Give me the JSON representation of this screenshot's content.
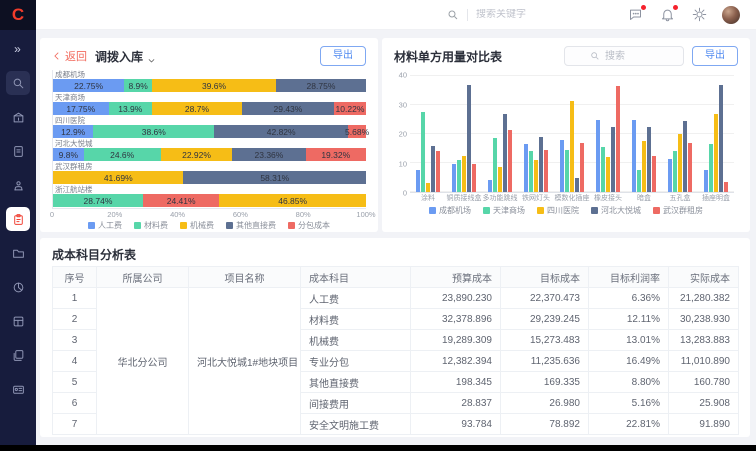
{
  "colors": {
    "blue": "#6B9BF2",
    "green": "#57D6A9",
    "yellow": "#F6BD16",
    "gray": "#5D7092",
    "red": "#EE6A63",
    "accent_red": "#F23C2B",
    "export_blue": "#4D88F0",
    "sidebar_bg": "#171C3D"
  },
  "topbar": {
    "search_placeholder": "搜索关键字",
    "icons": [
      "search-icon",
      "chat-icon",
      "bell-icon",
      "gear-icon",
      "avatar"
    ]
  },
  "sidebar": {
    "icons": [
      "expand-icon",
      "search-icon",
      "building-icon",
      "document-icon",
      "approval-icon",
      "inventory-icon",
      "folder-icon",
      "pie-chart-icon",
      "report-icon",
      "pages-icon",
      "id-card-icon"
    ],
    "active_icon": "inventory-icon"
  },
  "left_panel": {
    "back_label": "返回",
    "title": "调拨入库",
    "export_label": "导出"
  },
  "right_panel": {
    "title": "材料单方用量对比表",
    "search_placeholder": "搜索",
    "export_label": "导出"
  },
  "chart_data": [
    {
      "type": "bar",
      "orientation": "horizontal-stacked",
      "title": "调拨入库",
      "xlabel": "",
      "ylabel": "",
      "xlim": [
        0,
        100
      ],
      "xticks": [
        "0",
        "20%",
        "40%",
        "60%",
        "80%",
        "100%"
      ],
      "legend": [
        {
          "label": "人工费",
          "color": "blue"
        },
        {
          "label": "材料费",
          "color": "green"
        },
        {
          "label": "机械费",
          "color": "yellow"
        },
        {
          "label": "其他直接费",
          "color": "gray"
        },
        {
          "label": "分包成本",
          "color": "red"
        }
      ],
      "rows": [
        {
          "category": "成都机场",
          "segments": [
            {
              "series": "人工费",
              "value": 22.75,
              "label": "22.75%",
              "color": "blue"
            },
            {
              "series": "材料费",
              "value": 8.9,
              "label": "8.9%",
              "color": "green"
            },
            {
              "series": "机械费",
              "value": 39.6,
              "label": "39.6%",
              "color": "yellow"
            },
            {
              "series": "其他直接费",
              "value": 28.75,
              "label": "28.75%",
              "color": "gray"
            }
          ]
        },
        {
          "category": "天津商场",
          "segments": [
            {
              "series": "人工费",
              "value": 17.75,
              "label": "17.75%",
              "color": "blue"
            },
            {
              "series": "材料费",
              "value": 13.9,
              "label": "13.9%",
              "color": "green"
            },
            {
              "series": "机械费",
              "value": 28.7,
              "label": "28.7%",
              "color": "yellow"
            },
            {
              "series": "其他直接费",
              "value": 29.43,
              "label": "29.43%",
              "color": "gray"
            },
            {
              "series": "分包成本",
              "value": 10.22,
              "label": "10.22%",
              "color": "red"
            }
          ]
        },
        {
          "category": "四川医院",
          "segments": [
            {
              "series": "人工费",
              "value": 12.9,
              "label": "12.9%",
              "color": "blue"
            },
            {
              "series": "材料费",
              "value": 38.6,
              "label": "38.6%",
              "color": "green"
            },
            {
              "series": "其他直接费",
              "value": 42.82,
              "label": "42.82%",
              "color": "gray"
            },
            {
              "series": "分包成本",
              "value": 5.68,
              "label": "5.68%",
              "color": "red"
            }
          ]
        },
        {
          "category": "河北大悦城",
          "segments": [
            {
              "series": "人工费",
              "value": 9.8,
              "label": "9.8%",
              "color": "blue"
            },
            {
              "series": "材料费",
              "value": 24.6,
              "label": "24.6%",
              "color": "green"
            },
            {
              "series": "机械费",
              "value": 22.92,
              "label": "22.92%",
              "color": "yellow"
            },
            {
              "series": "其他直接费",
              "value": 23.36,
              "label": "23.36%",
              "color": "gray"
            },
            {
              "series": "分包成本",
              "value": 19.32,
              "label": "19.32%",
              "color": "red"
            }
          ]
        },
        {
          "category": "武汉群租房",
          "segments": [
            {
              "series": "机械费",
              "value": 41.69,
              "label": "41.69%",
              "color": "yellow"
            },
            {
              "series": "其他直接费",
              "value": 58.31,
              "label": "58.31%",
              "color": "gray"
            }
          ]
        },
        {
          "category": "浙江航站楼",
          "segments": [
            {
              "series": "材料费",
              "value": 28.74,
              "label": "28.74%",
              "color": "green"
            },
            {
              "series": "分包成本",
              "value": 24.41,
              "label": "24.41%",
              "color": "red"
            },
            {
              "series": "机械费",
              "value": 46.85,
              "label": "46.85%",
              "color": "yellow"
            }
          ]
        }
      ]
    },
    {
      "type": "bar",
      "orientation": "vertical-grouped",
      "title": "材料单方用量对比表",
      "xlabel": "",
      "ylabel": "",
      "ylim": [
        0,
        40
      ],
      "yticks": [
        "0",
        "10",
        "20",
        "30",
        "40"
      ],
      "categories": [
        "涂料",
        "铜质接线盒",
        "多功能跳线",
        "铁网灯头",
        "模数化插座",
        "橡皮接头",
        "暗盒",
        "五孔盒",
        "插座明盒"
      ],
      "series": [
        {
          "name": "成都机场",
          "color": "blue",
          "values": [
            7.5,
            9.5,
            4,
            16.5,
            18,
            25,
            25,
            11.5,
            7.5
          ]
        },
        {
          "name": "天津商场",
          "color": "green",
          "values": [
            27.5,
            11,
            18.5,
            14,
            14.5,
            15.5,
            7.5,
            14,
            16.5
          ]
        },
        {
          "name": "四川医院",
          "color": "yellow",
          "values": [
            3,
            12.5,
            8.5,
            11,
            31.5,
            12,
            17.5,
            20,
            27
          ]
        },
        {
          "name": "河北大悦城",
          "color": "gray",
          "values": [
            16,
            37,
            27,
            19,
            5,
            22.5,
            22.5,
            24.5,
            37
          ]
        },
        {
          "name": "武汉群租房",
          "color": "red",
          "values": [
            14,
            9.5,
            21.5,
            14.5,
            17,
            36.5,
            12.5,
            17,
            3.5
          ]
        }
      ],
      "legend_position": "bottom",
      "grid": true
    }
  ],
  "table": {
    "title": "成本科目分析表",
    "headers": [
      "序号",
      "所属公司",
      "项目名称",
      "成本科目",
      "预算成本",
      "目标成本",
      "目标利润率",
      "实际成本"
    ],
    "company": "华北分公司",
    "project": "河北大悦城1#地块项目",
    "rows": [
      {
        "no": "1",
        "subject": "人工费",
        "budget": "23,890.230",
        "target": "22,370.473",
        "margin": "6.36%",
        "actual": "21,280.382"
      },
      {
        "no": "2",
        "subject": "材料费",
        "budget": "32,378.896",
        "target": "29,239.245",
        "margin": "12.11%",
        "actual": "30,238.930"
      },
      {
        "no": "3",
        "subject": "机械费",
        "budget": "19,289.309",
        "target": "15,273.483",
        "margin": "13.01%",
        "actual": "13,283.883"
      },
      {
        "no": "4",
        "subject": "专业分包",
        "budget": "12,382.394",
        "target": "11,235.636",
        "margin": "16.49%",
        "actual": "11,010.890"
      },
      {
        "no": "5",
        "subject": "其他直接费",
        "budget": "198.345",
        "target": "169.335",
        "margin": "8.80%",
        "actual": "160.780"
      },
      {
        "no": "6",
        "subject": "间接费用",
        "budget": "28.837",
        "target": "26.980",
        "margin": "5.16%",
        "actual": "25.908"
      },
      {
        "no": "7",
        "subject": "安全文明施工费",
        "budget": "93.784",
        "target": "78.892",
        "margin": "22.81%",
        "actual": "91.890"
      }
    ]
  }
}
